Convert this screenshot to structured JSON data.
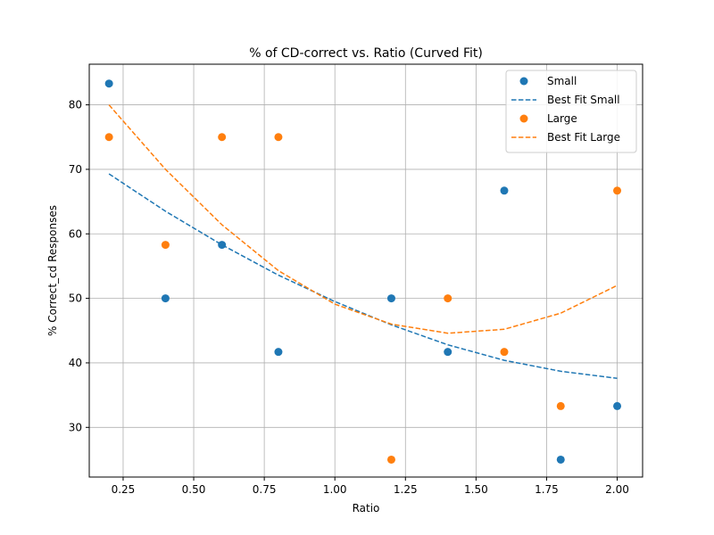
{
  "chart_data": {
    "type": "scatter",
    "title": "% of CD-correct vs. Ratio (Curved Fit)",
    "xlabel": "Ratio",
    "ylabel": "% Correct_cd Responses",
    "xlim": [
      0.13,
      2.09
    ],
    "ylim": [
      22.3,
      86.3
    ],
    "x_ticks": [
      0.25,
      0.5,
      0.75,
      1.0,
      1.25,
      1.5,
      1.75,
      2.0
    ],
    "x_tick_labels": [
      "0.25",
      "0.50",
      "0.75",
      "1.00",
      "1.25",
      "1.50",
      "1.75",
      "2.00"
    ],
    "y_ticks": [
      30,
      40,
      50,
      60,
      70,
      80
    ],
    "y_tick_labels": [
      "30",
      "40",
      "50",
      "60",
      "70",
      "80"
    ],
    "grid": true,
    "legend_position": "top-right",
    "series": [
      {
        "name": "Small",
        "kind": "scatter",
        "color": "#1f77b4",
        "x": [
          0.2,
          0.4,
          0.6,
          0.8,
          1.2,
          1.4,
          1.6,
          1.8,
          2.0
        ],
        "y": [
          83.3,
          50.0,
          58.3,
          41.7,
          50.0,
          41.7,
          66.7,
          25.0,
          33.3
        ]
      },
      {
        "name": "Best Fit Small",
        "kind": "line",
        "dash": true,
        "color": "#1f77b4",
        "x": [
          0.2,
          0.4,
          0.6,
          0.8,
          1.0,
          1.2,
          1.4,
          1.6,
          1.8,
          2.0
        ],
        "y": [
          69.3,
          63.5,
          58.3,
          53.6,
          49.5,
          45.9,
          42.8,
          40.4,
          38.7,
          37.6
        ]
      },
      {
        "name": "Large",
        "kind": "scatter",
        "color": "#ff7f0e",
        "x": [
          0.2,
          0.4,
          0.6,
          0.8,
          1.2,
          1.4,
          1.6,
          1.8,
          2.0
        ],
        "y": [
          75.0,
          58.3,
          75.0,
          75.0,
          25.0,
          50.0,
          41.7,
          33.3,
          66.7
        ]
      },
      {
        "name": "Best Fit Large",
        "kind": "line",
        "dash": true,
        "color": "#ff7f0e",
        "x": [
          0.2,
          0.4,
          0.6,
          0.8,
          1.0,
          1.2,
          1.4,
          1.6,
          1.8,
          2.0
        ],
        "y": [
          80.0,
          70.0,
          61.4,
          54.3,
          49.1,
          46.0,
          44.6,
          45.2,
          47.7,
          52.0
        ]
      }
    ]
  }
}
